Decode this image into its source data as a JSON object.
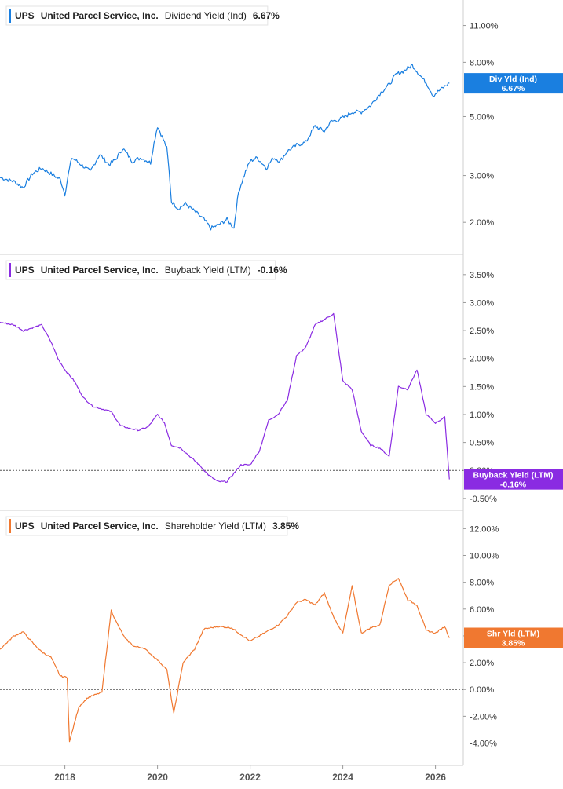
{
  "chart_data": [
    {
      "type": "line",
      "ticker": "UPS",
      "company": "United Parcel Service, Inc.",
      "metric": "Dividend Yield (Ind)",
      "latest": "6.67%",
      "tag_label": "Div Yld (Ind)",
      "color": "#1a7fe0",
      "scale": "log",
      "ylim": [
        1.6,
        13.0
      ],
      "yticks": [
        2,
        3,
        5,
        8,
        11
      ],
      "ytick_labels": [
        "2.00%",
        "3.00%",
        "5.00%",
        "8.00%",
        "11.00%"
      ],
      "zero_line": false,
      "x": [
        2016.6,
        2016.9,
        2017.1,
        2017.3,
        2017.5,
        2017.7,
        2017.9,
        2018.0,
        2018.15,
        2018.35,
        2018.55,
        2018.75,
        2018.95,
        2019.1,
        2019.25,
        2019.45,
        2019.65,
        2019.85,
        2020.0,
        2020.1,
        2020.2,
        2020.3,
        2020.45,
        2020.6,
        2020.8,
        2021.0,
        2021.15,
        2021.3,
        2021.5,
        2021.65,
        2021.75,
        2021.9,
        2022.0,
        2022.15,
        2022.35,
        2022.5,
        2022.65,
        2022.8,
        2023.0,
        2023.2,
        2023.4,
        2023.6,
        2023.75,
        2023.9,
        2024.05,
        2024.2,
        2024.4,
        2024.6,
        2024.8,
        2025.0,
        2025.15,
        2025.3,
        2025.5,
        2025.65,
        2025.8,
        2025.95,
        2026.1,
        2026.3
      ],
      "values": [
        2.95,
        2.85,
        2.7,
        3.05,
        3.2,
        3.05,
        2.9,
        2.55,
        3.5,
        3.3,
        3.1,
        3.6,
        3.3,
        3.45,
        3.8,
        3.4,
        3.5,
        3.35,
        4.6,
        4.2,
        3.8,
        2.4,
        2.25,
        2.35,
        2.2,
        2.05,
        1.9,
        1.95,
        2.05,
        1.9,
        2.6,
        3.1,
        3.4,
        3.5,
        3.2,
        3.5,
        3.4,
        3.7,
        3.9,
        4.0,
        4.6,
        4.4,
        4.8,
        4.85,
        5.0,
        5.2,
        5.2,
        5.5,
        6.1,
        6.6,
        7.2,
        7.4,
        7.8,
        7.2,
        6.7,
        6.0,
        6.3,
        6.67
      ]
    },
    {
      "type": "line",
      "ticker": "UPS",
      "company": "United Parcel Service, Inc.",
      "metric": "Buyback Yield (LTM)",
      "latest": "-0.16%",
      "tag_label": "Buyback Yield (LTM)",
      "color": "#8a2be2",
      "scale": "linear",
      "ylim": [
        -0.6,
        3.75
      ],
      "yticks": [
        -0.5,
        0,
        0.5,
        1.0,
        1.5,
        2.0,
        2.5,
        3.0,
        3.5
      ],
      "ytick_labels": [
        "-0.50%",
        "0.00%",
        "0.50%",
        "1.00%",
        "1.50%",
        "2.00%",
        "2.50%",
        "3.00%",
        "3.50%"
      ],
      "zero_line": true,
      "x": [
        2016.6,
        2016.9,
        2017.1,
        2017.3,
        2017.5,
        2017.7,
        2017.85,
        2018.0,
        2018.2,
        2018.4,
        2018.6,
        2018.8,
        2019.0,
        2019.2,
        2019.4,
        2019.6,
        2019.8,
        2020.0,
        2020.15,
        2020.3,
        2020.5,
        2020.7,
        2020.9,
        2021.1,
        2021.3,
        2021.5,
        2021.8,
        2022.0,
        2022.2,
        2022.4,
        2022.6,
        2022.8,
        2023.0,
        2023.2,
        2023.4,
        2023.6,
        2023.8,
        2024.0,
        2024.2,
        2024.4,
        2024.6,
        2024.8,
        2025.0,
        2025.2,
        2025.4,
        2025.6,
        2025.8,
        2026.0,
        2026.2,
        2026.3
      ],
      "values": [
        2.65,
        2.6,
        2.5,
        2.55,
        2.6,
        2.3,
        2.0,
        1.8,
        1.6,
        1.3,
        1.15,
        1.1,
        1.05,
        0.8,
        0.75,
        0.72,
        0.78,
        1.0,
        0.85,
        0.45,
        0.4,
        0.25,
        0.1,
        -0.08,
        -0.2,
        -0.2,
        0.1,
        0.1,
        0.35,
        0.9,
        1.0,
        1.25,
        2.05,
        2.2,
        2.6,
        2.7,
        2.8,
        1.6,
        1.45,
        0.7,
        0.45,
        0.4,
        0.25,
        1.5,
        1.45,
        1.8,
        1.0,
        0.85,
        0.95,
        -0.16
      ]
    },
    {
      "type": "line",
      "ticker": "UPS",
      "company": "United Parcel Service, Inc.",
      "metric": "Shareholder Yield (LTM)",
      "latest": "3.85%",
      "tag_label": "Shr Yld (LTM)",
      "color": "#f07830",
      "scale": "linear",
      "ylim": [
        -5.2,
        12.9
      ],
      "yticks": [
        -4,
        -2,
        0,
        2,
        4,
        6,
        8,
        10,
        12
      ],
      "ytick_labels": [
        "-4.00%",
        "-2.00%",
        "0.00%",
        "2.00%",
        "4.00%",
        "6.00%",
        "8.00%",
        "10.00%",
        "12.00%"
      ],
      "zero_line": true,
      "x": [
        2016.6,
        2016.9,
        2017.1,
        2017.3,
        2017.5,
        2017.7,
        2017.9,
        2018.05,
        2018.1,
        2018.3,
        2018.5,
        2018.8,
        2019.0,
        2019.1,
        2019.3,
        2019.5,
        2019.7,
        2020.0,
        2020.2,
        2020.35,
        2020.55,
        2020.8,
        2021.0,
        2021.3,
        2021.6,
        2021.8,
        2022.0,
        2022.3,
        2022.6,
        2022.8,
        2023.0,
        2023.2,
        2023.4,
        2023.6,
        2023.8,
        2024.0,
        2024.2,
        2024.4,
        2024.6,
        2024.8,
        2025.0,
        2025.2,
        2025.4,
        2025.6,
        2025.8,
        2026.0,
        2026.2,
        2026.3
      ],
      "values": [
        3.0,
        4.0,
        4.3,
        3.5,
        2.8,
        2.4,
        1.0,
        0.9,
        -3.9,
        -1.3,
        -0.6,
        -0.2,
        5.9,
        5.1,
        3.8,
        3.2,
        3.1,
        2.2,
        1.5,
        -1.8,
        2.0,
        3.0,
        4.5,
        4.7,
        4.6,
        4.1,
        3.6,
        4.2,
        4.8,
        5.5,
        6.5,
        6.7,
        6.3,
        7.2,
        5.4,
        4.2,
        7.7,
        4.2,
        4.6,
        4.8,
        7.8,
        8.3,
        6.7,
        6.3,
        4.4,
        4.2,
        4.7,
        3.85
      ]
    }
  ],
  "x_axis": {
    "ticks": [
      2018,
      2020,
      2022,
      2024,
      2026
    ],
    "tick_labels": [
      "2018",
      "2020",
      "2022",
      "2024",
      "2026"
    ],
    "xlim": [
      2016.6,
      2026.6
    ]
  }
}
